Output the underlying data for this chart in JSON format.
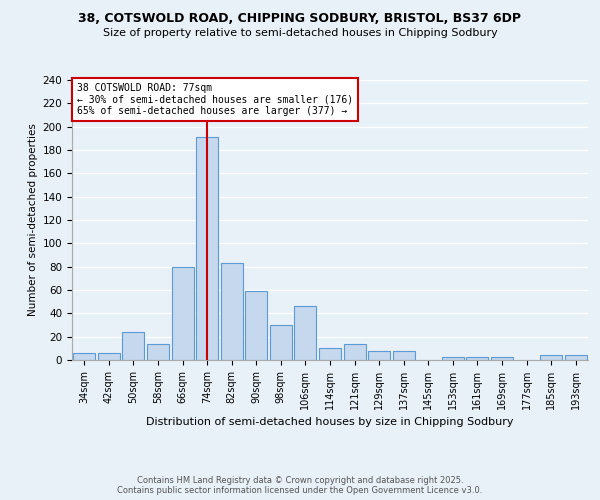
{
  "title1": "38, COTSWOLD ROAD, CHIPPING SODBURY, BRISTOL, BS37 6DP",
  "title2": "Size of property relative to semi-detached houses in Chipping Sodbury",
  "xlabel": "Distribution of semi-detached houses by size in Chipping Sodbury",
  "ylabel": "Number of semi-detached properties",
  "categories": [
    "34sqm",
    "42sqm",
    "50sqm",
    "58sqm",
    "66sqm",
    "74sqm",
    "82sqm",
    "90sqm",
    "98sqm",
    "106sqm",
    "114sqm",
    "121sqm",
    "129sqm",
    "137sqm",
    "145sqm",
    "153sqm",
    "161sqm",
    "169sqm",
    "177sqm",
    "185sqm",
    "193sqm"
  ],
  "values": [
    6,
    6,
    24,
    14,
    80,
    191,
    83,
    59,
    30,
    46,
    10,
    14,
    8,
    8,
    0,
    3,
    3,
    3,
    0,
    4,
    4
  ],
  "bar_color": "#c5d8ed",
  "bar_edge_color": "#5b9bd5",
  "background_color": "#e8f0f8",
  "grid_color": "#ffffff",
  "annotation_title": "38 COTSWOLD ROAD: 77sqm",
  "annotation_line1": "← 30% of semi-detached houses are smaller (176)",
  "annotation_line2": "65% of semi-detached houses are larger (377) →",
  "vline_x": 5.0,
  "vline_color": "#cc0000",
  "annotation_box_color": "#cc0000",
  "ylim": [
    0,
    240
  ],
  "yticks": [
    0,
    20,
    40,
    60,
    80,
    100,
    120,
    140,
    160,
    180,
    200,
    220,
    240
  ],
  "footer1": "Contains HM Land Registry data © Crown copyright and database right 2025.",
  "footer2": "Contains public sector information licensed under the Open Government Licence v3.0."
}
